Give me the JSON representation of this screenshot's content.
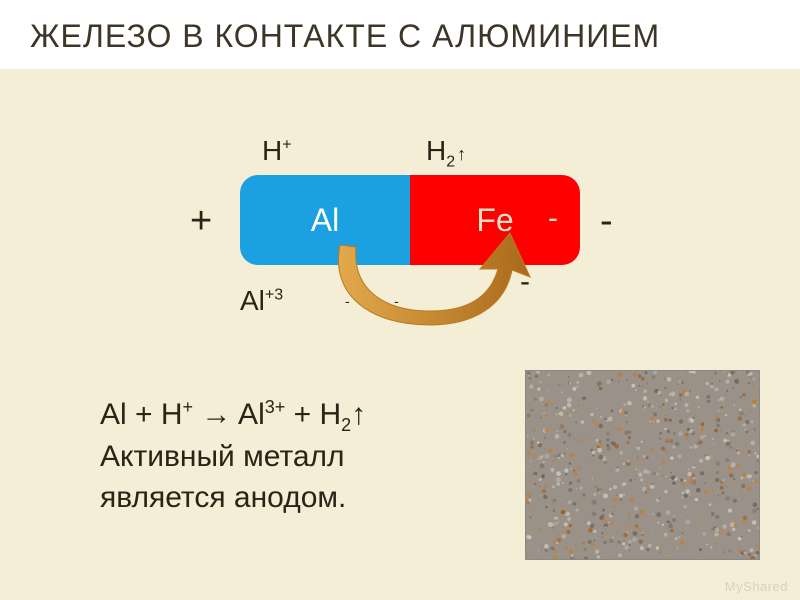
{
  "slide": {
    "background": "#f4eed6",
    "title": {
      "text": "ЖЕЛЕЗО В КОНТАКТЕ С АЛЮМИНИЕМ",
      "bg_color": "#ffffff",
      "text_color": "#3d3528",
      "font_size": 32
    }
  },
  "diagram": {
    "labels": {
      "h_plus": "H",
      "h_plus_sup": "+",
      "h2": "H",
      "h2_sub": "2",
      "h2_arrow": "↑",
      "plus_left": "+",
      "minus_right": "-",
      "minus_below_fe": "-",
      "al3": "Al",
      "al3_sup": "+3",
      "electrons": "-  -      -"
    },
    "al_box": {
      "label": "Al",
      "fill": "#1ba0e1",
      "text_color": "#ffffff"
    },
    "fe_box": {
      "label": "Fe",
      "minus": "-",
      "fill": "#ff0000",
      "text_color": "#f0dfc6"
    },
    "text_color": "#2a2416",
    "arrow": {
      "stroke": "#b97a1f",
      "fill_start": "#e2a94b",
      "fill_end": "#a9691b"
    }
  },
  "equation": {
    "line1_parts": {
      "al": "Al + H",
      "hsup": "+",
      "arrow": " → Al",
      "al_sup": "3+",
      "plus_h": " + H",
      "h_sub": "2",
      "up": "↑"
    },
    "line2": "Активный металл",
    "line3": "является анодом.",
    "text_color": "#2a2416"
  },
  "image": {
    "type": "corroded-metal-texture",
    "base_color": "#9a9289",
    "rust_color": "#c77b2e",
    "rust_color2": "#a05a1a",
    "grain_color": "#6b6258",
    "light_color": "#cfc9c0"
  },
  "watermark": "MyShared"
}
